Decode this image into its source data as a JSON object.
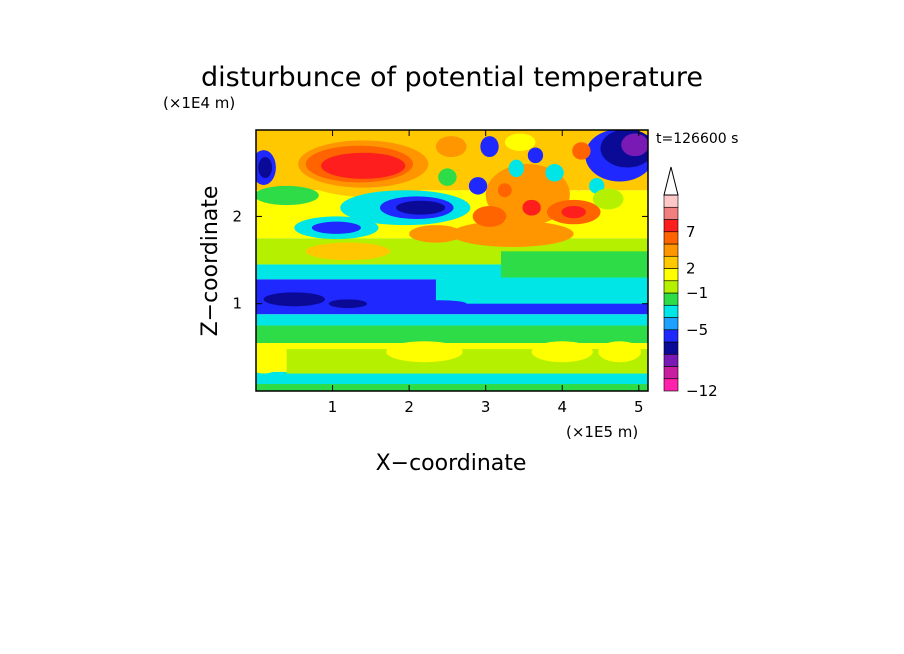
{
  "chart_data": {
    "type": "heatmap",
    "title": "disturbunce of potential temperature",
    "time_label": "t=126600 s",
    "xlabel": "X−coordinate",
    "ylabel": "Z−coordinate",
    "x_multiplier": "(×1E5 m)",
    "y_multiplier": "(×1E4 m)",
    "xlim": [
      0,
      5.12
    ],
    "ylim": [
      0,
      2.99
    ],
    "x_ticks": [
      {
        "value": 1,
        "label": "1"
      },
      {
        "value": 2,
        "label": "2"
      },
      {
        "value": 3,
        "label": "3"
      },
      {
        "value": 4,
        "label": "4"
      },
      {
        "value": 5,
        "label": "5"
      }
    ],
    "y_ticks": [
      {
        "value": 1,
        "label": "1"
      },
      {
        "value": 2,
        "label": "2"
      }
    ],
    "colorbar": {
      "labels": [
        {
          "value": 7,
          "label": "7"
        },
        {
          "value": 2,
          "label": "2"
        },
        {
          "value": -1,
          "label": "−1"
        },
        {
          "value": -5,
          "label": "−5"
        },
        {
          "value": -12,
          "label": "−12"
        }
      ],
      "bands": [
        {
          "color": "#ff22aa"
        },
        {
          "color": "#c81ea0"
        },
        {
          "color": "#7a1ab4"
        },
        {
          "color": "#0a0a96"
        },
        {
          "color": "#1e28ff"
        },
        {
          "color": "#1ea0ff"
        },
        {
          "color": "#00e6e6"
        },
        {
          "color": "#2ddc46"
        },
        {
          "color": "#b4f000"
        },
        {
          "color": "#ffff00"
        },
        {
          "color": "#ffc800"
        },
        {
          "color": "#ff9600"
        },
        {
          "color": "#ff6400"
        },
        {
          "color": "#ff1e1e"
        },
        {
          "color": "#f08080"
        },
        {
          "color": "#ffc8c8"
        }
      ],
      "overflow_color": "#ffffff"
    },
    "regions": [
      {
        "x": [
          0.0,
          5.12
        ],
        "z": [
          0.0,
          0.08
        ],
        "color": "#2ddc46"
      },
      {
        "x": [
          0.0,
          5.12
        ],
        "z": [
          0.08,
          0.22
        ],
        "color": "#00e6e6"
      },
      {
        "x": [
          0.0,
          5.12
        ],
        "z": [
          0.22,
          0.55
        ],
        "color": "#ffff00"
      },
      {
        "x": [
          0.0,
          5.12
        ],
        "z": [
          0.55,
          0.75
        ],
        "color": "#2ddc46"
      },
      {
        "x": [
          0.0,
          5.12
        ],
        "z": [
          0.75,
          0.88
        ],
        "color": "#00e6e6"
      },
      {
        "x": [
          0.0,
          5.12
        ],
        "z": [
          0.88,
          1.28
        ],
        "color": "#1e28ff"
      },
      {
        "x": [
          0.0,
          5.12
        ],
        "z": [
          1.28,
          1.45
        ],
        "color": "#00e6e6"
      },
      {
        "x": [
          0.0,
          5.12
        ],
        "z": [
          1.45,
          1.75
        ],
        "color": "#b4f000"
      },
      {
        "x": [
          0.0,
          5.12
        ],
        "z": [
          1.75,
          2.3
        ],
        "color": "#ffff00"
      },
      {
        "x": [
          0.0,
          5.12
        ],
        "z": [
          2.3,
          2.99
        ],
        "color": "#ffc800"
      },
      {
        "x": [
          2.35,
          5.12
        ],
        "z": [
          1.0,
          1.35
        ],
        "color": "#00e6e6"
      },
      {
        "x": [
          3.2,
          5.12
        ],
        "z": [
          1.3,
          1.6
        ],
        "color": "#2ddc46"
      },
      {
        "x": [
          0.4,
          5.12
        ],
        "z": [
          0.2,
          0.48
        ],
        "color": "#b4f000"
      }
    ],
    "blobs": [
      {
        "cx": 1.5,
        "cz": 2.56,
        "rx": 1.05,
        "rz": 0.34,
        "color": "#ffc800"
      },
      {
        "cx": 1.4,
        "cz": 2.6,
        "rx": 0.85,
        "rz": 0.27,
        "color": "#ff9600"
      },
      {
        "cx": 1.35,
        "cz": 2.6,
        "rx": 0.7,
        "rz": 0.21,
        "color": "#ff6400"
      },
      {
        "cx": 1.4,
        "cz": 2.58,
        "rx": 0.55,
        "rz": 0.15,
        "color": "#ff1e1e"
      },
      {
        "cx": 1.95,
        "cz": 2.1,
        "rx": 0.85,
        "rz": 0.2,
        "color": "#00e6e6"
      },
      {
        "cx": 2.1,
        "cz": 2.1,
        "rx": 0.48,
        "rz": 0.13,
        "color": "#1e28ff"
      },
      {
        "cx": 2.15,
        "cz": 2.1,
        "rx": 0.32,
        "rz": 0.08,
        "color": "#0a0a96"
      },
      {
        "cx": 1.05,
        "cz": 1.87,
        "rx": 0.55,
        "rz": 0.13,
        "color": "#00e6e6"
      },
      {
        "cx": 1.05,
        "cz": 1.87,
        "rx": 0.32,
        "rz": 0.07,
        "color": "#1e28ff"
      },
      {
        "cx": 0.4,
        "cz": 2.24,
        "rx": 0.42,
        "rz": 0.11,
        "color": "#2ddc46"
      },
      {
        "cx": 1.2,
        "cz": 1.6,
        "rx": 0.55,
        "rz": 0.1,
        "color": "#ffc800"
      },
      {
        "cx": 2.35,
        "cz": 1.8,
        "rx": 0.35,
        "rz": 0.1,
        "color": "#ff9600"
      },
      {
        "cx": 0.1,
        "cz": 2.56,
        "rx": 0.16,
        "rz": 0.2,
        "color": "#1e28ff"
      },
      {
        "cx": 0.12,
        "cz": 2.56,
        "rx": 0.09,
        "rz": 0.12,
        "color": "#0a0a96"
      },
      {
        "cx": 3.55,
        "cz": 2.25,
        "rx": 0.55,
        "rz": 0.35,
        "color": "#ff9600"
      },
      {
        "cx": 4.15,
        "cz": 2.05,
        "rx": 0.35,
        "rz": 0.14,
        "color": "#ff6400"
      },
      {
        "cx": 4.15,
        "cz": 2.05,
        "rx": 0.16,
        "rz": 0.07,
        "color": "#ff1e1e"
      },
      {
        "cx": 3.35,
        "cz": 1.8,
        "rx": 0.8,
        "rz": 0.15,
        "color": "#ff9600"
      },
      {
        "cx": 3.05,
        "cz": 2.0,
        "rx": 0.22,
        "rz": 0.12,
        "color": "#ff6400"
      },
      {
        "cx": 4.75,
        "cz": 2.7,
        "rx": 0.45,
        "rz": 0.3,
        "color": "#1e28ff"
      },
      {
        "cx": 4.85,
        "cz": 2.78,
        "rx": 0.35,
        "rz": 0.22,
        "color": "#0a0a96"
      },
      {
        "cx": 4.95,
        "cz": 2.82,
        "rx": 0.18,
        "rz": 0.13,
        "color": "#7a1ab4"
      },
      {
        "cx": 3.05,
        "cz": 2.8,
        "rx": 0.12,
        "rz": 0.12,
        "color": "#1e28ff"
      },
      {
        "cx": 3.4,
        "cz": 2.55,
        "rx": 0.1,
        "rz": 0.1,
        "color": "#00e6e6"
      },
      {
        "cx": 3.65,
        "cz": 2.7,
        "rx": 0.1,
        "rz": 0.09,
        "color": "#1e28ff"
      },
      {
        "cx": 3.9,
        "cz": 2.5,
        "rx": 0.12,
        "rz": 0.1,
        "color": "#00e6e6"
      },
      {
        "cx": 2.9,
        "cz": 2.35,
        "rx": 0.12,
        "rz": 0.1,
        "color": "#1e28ff"
      },
      {
        "cx": 3.25,
        "cz": 2.3,
        "rx": 0.09,
        "rz": 0.08,
        "color": "#ff6400"
      },
      {
        "cx": 4.25,
        "cz": 2.75,
        "rx": 0.12,
        "rz": 0.1,
        "color": "#ff6400"
      },
      {
        "cx": 4.45,
        "cz": 2.35,
        "rx": 0.1,
        "rz": 0.09,
        "color": "#00e6e6"
      },
      {
        "cx": 3.6,
        "cz": 2.1,
        "rx": 0.12,
        "rz": 0.09,
        "color": "#ff1e1e"
      },
      {
        "cx": 2.55,
        "cz": 2.8,
        "rx": 0.2,
        "rz": 0.12,
        "color": "#ff9600"
      },
      {
        "cx": 3.45,
        "cz": 2.85,
        "rx": 0.2,
        "rz": 0.1,
        "color": "#ffff00"
      },
      {
        "cx": 4.6,
        "cz": 2.2,
        "rx": 0.2,
        "rz": 0.12,
        "color": "#b4f000"
      },
      {
        "cx": 2.5,
        "cz": 2.45,
        "rx": 0.12,
        "rz": 0.1,
        "color": "#2ddc46"
      },
      {
        "cx": 3.2,
        "cz": 1.2,
        "rx": 0.55,
        "rz": 0.08,
        "color": "#00e6e6"
      },
      {
        "cx": 2.2,
        "cz": 0.45,
        "rx": 0.5,
        "rz": 0.12,
        "color": "#ffff00"
      },
      {
        "cx": 4.0,
        "cz": 0.45,
        "rx": 0.4,
        "rz": 0.12,
        "color": "#ffff00"
      },
      {
        "cx": 4.75,
        "cz": 0.45,
        "rx": 0.28,
        "rz": 0.12,
        "color": "#ffff00"
      },
      {
        "cx": 0.1,
        "cz": 0.3,
        "rx": 0.2,
        "rz": 0.1,
        "color": "#ffff00"
      },
      {
        "cx": 0.5,
        "cz": 1.05,
        "rx": 0.4,
        "rz": 0.08,
        "color": "#0a0a96"
      },
      {
        "cx": 1.2,
        "cz": 1.0,
        "rx": 0.25,
        "rz": 0.05,
        "color": "#0a0a96"
      },
      {
        "cx": 2.4,
        "cz": 1.0,
        "rx": 0.35,
        "rz": 0.04,
        "color": "#1e28ff"
      }
    ]
  }
}
